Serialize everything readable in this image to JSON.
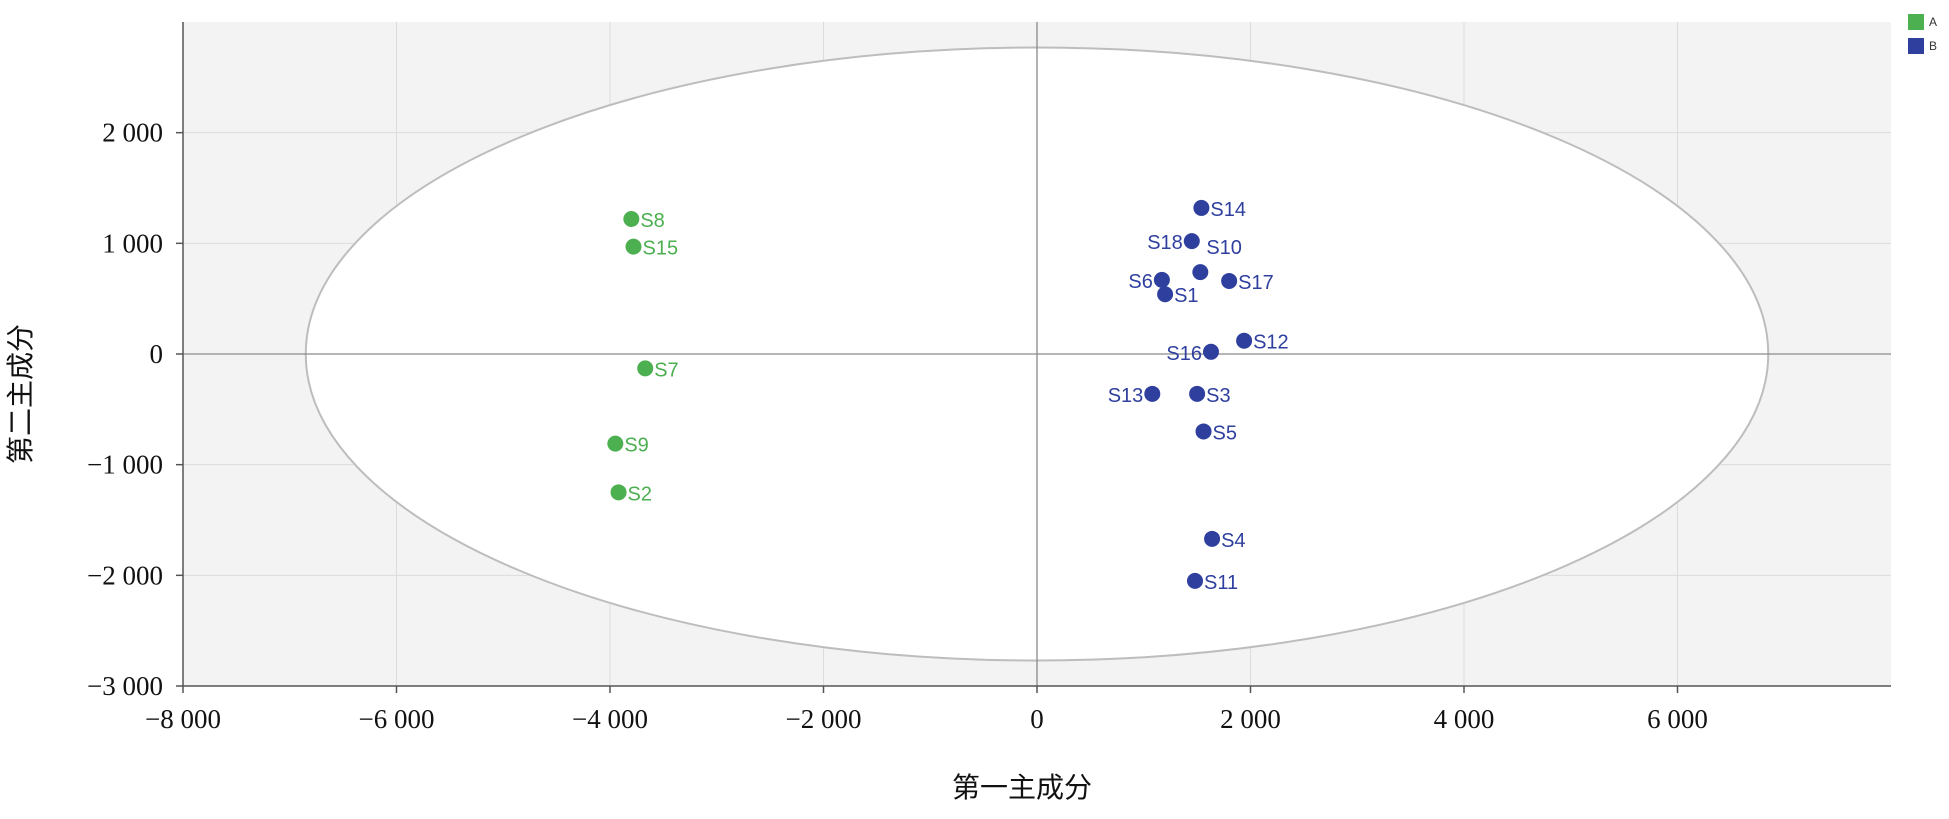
{
  "chart_data": {
    "type": "scatter",
    "xlabel": "第一主成分",
    "ylabel": "第二主成分",
    "xlim": [
      -8000,
      8000
    ],
    "ylim": [
      -3000,
      3000
    ],
    "x_ticks": [
      -8000,
      -6000,
      -4000,
      -2000,
      0,
      2000,
      4000,
      6000
    ],
    "y_ticks": [
      -3000,
      -2000,
      -1000,
      0,
      1000,
      2000
    ],
    "x_tick_labels": [
      "−8 000",
      "−6 000",
      "−4 000",
      "−2 000",
      "0",
      "2 000",
      "4 000",
      "6 000"
    ],
    "y_tick_labels": [
      "−3 000",
      "−2 000",
      "−1 000",
      "0",
      "1 000",
      "2 000"
    ],
    "grid": true,
    "confidence_ellipse": {
      "cx": 0,
      "cy": 0,
      "rx": 6850,
      "ry": 2770
    },
    "legend": {
      "placement": "top-right"
    },
    "series": [
      {
        "name": "A",
        "color": "#4caf50",
        "points": [
          {
            "label": "S8",
            "x": -3800,
            "y": 1220
          },
          {
            "label": "S15",
            "x": -3780,
            "y": 970
          },
          {
            "label": "S7",
            "x": -3670,
            "y": -130
          },
          {
            "label": "S9",
            "x": -3950,
            "y": -810
          },
          {
            "label": "S2",
            "x": -3920,
            "y": -1250
          }
        ]
      },
      {
        "name": "B",
        "color": "#2f3f9e",
        "points": [
          {
            "label": "S14",
            "x": 1540,
            "y": 1320
          },
          {
            "label": "S18",
            "x": 1450,
            "y": 1020
          },
          {
            "label": "S10",
            "x": 1530,
            "y": 740
          },
          {
            "label": "S17",
            "x": 1800,
            "y": 660
          },
          {
            "label": "S6",
            "x": 1170,
            "y": 670
          },
          {
            "label": "S1",
            "x": 1200,
            "y": 540
          },
          {
            "label": "S12",
            "x": 1940,
            "y": 120
          },
          {
            "label": "S16",
            "x": 1630,
            "y": 20
          },
          {
            "label": "S13",
            "x": 1080,
            "y": -360
          },
          {
            "label": "S3",
            "x": 1500,
            "y": -360
          },
          {
            "label": "S5",
            "x": 1560,
            "y": -700
          },
          {
            "label": "S4",
            "x": 1640,
            "y": -1670
          },
          {
            "label": "S11",
            "x": 1480,
            "y": -2050
          }
        ]
      }
    ]
  }
}
